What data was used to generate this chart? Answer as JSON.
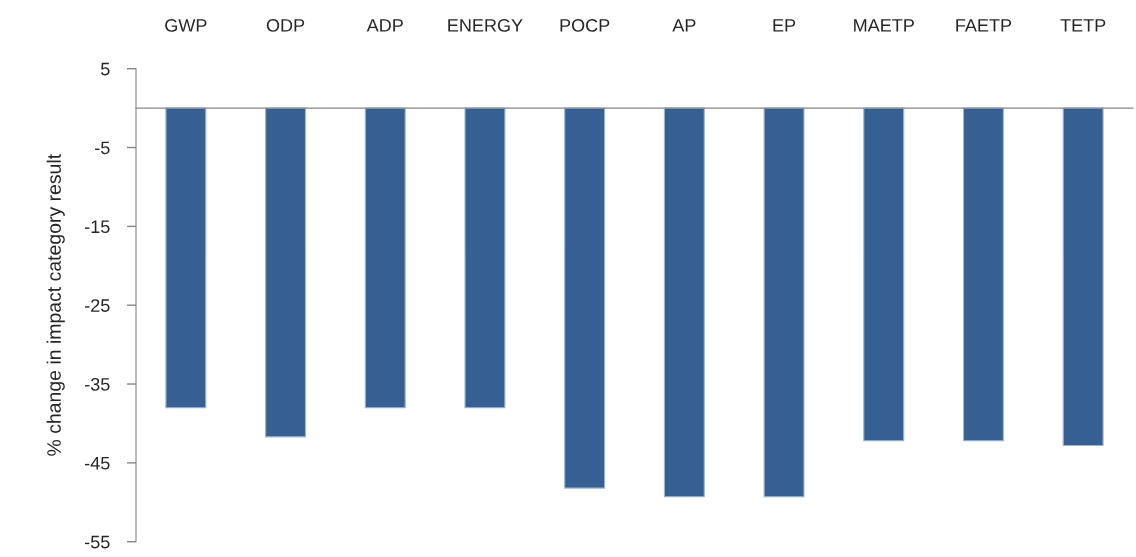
{
  "chart_data": {
    "type": "bar",
    "ylabel": "% change in impact category result",
    "categories": [
      "GWP",
      "ODP",
      "ADP",
      "ENERGY",
      "POCP",
      "AP",
      "EP",
      "MAETP",
      "FAETP",
      "TETP"
    ],
    "values": [
      -38,
      -41.7,
      -38,
      -38,
      -48.2,
      -49.3,
      -49.3,
      -42.2,
      -42.2,
      -42.8
    ],
    "color": "#366092",
    "ylim": [
      -55,
      5
    ],
    "yticks": [
      5,
      -5,
      -15,
      -25,
      -35,
      -45,
      -55
    ]
  }
}
